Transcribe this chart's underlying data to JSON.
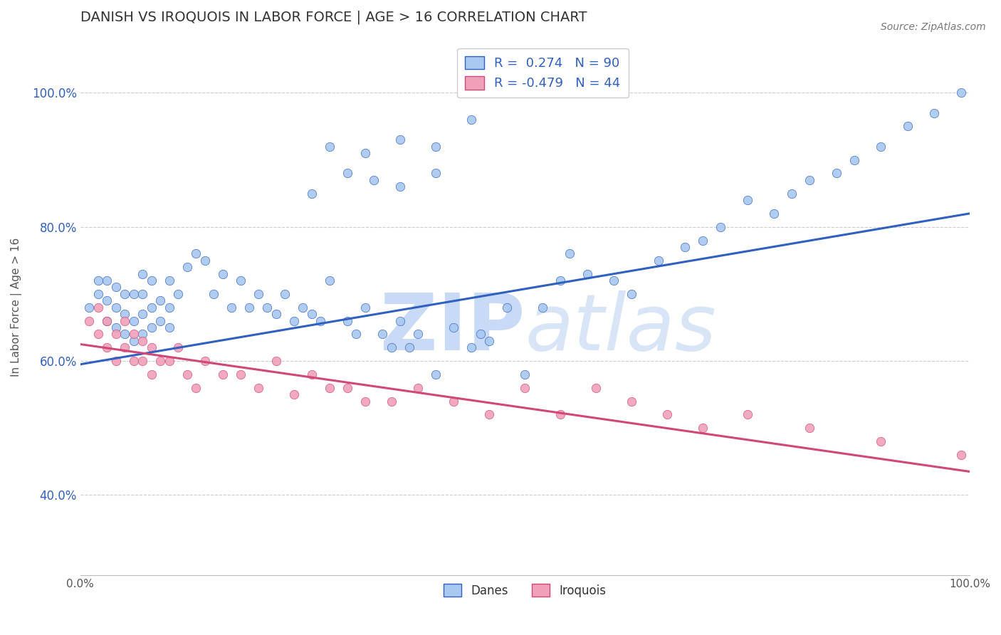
{
  "title": "DANISH VS IROQUOIS IN LABOR FORCE | AGE > 16 CORRELATION CHART",
  "source": "Source: ZipAtlas.com",
  "ylabel": "In Labor Force | Age > 16",
  "xlim": [
    0.0,
    1.0
  ],
  "ylim": [
    0.28,
    1.08
  ],
  "x_ticks": [
    0.0,
    0.2,
    0.4,
    0.6,
    0.8,
    1.0
  ],
  "x_tick_labels": [
    "0.0%",
    "",
    "",
    "",
    "",
    "100.0%"
  ],
  "y_ticks": [
    0.4,
    0.6,
    0.8,
    1.0
  ],
  "y_tick_labels": [
    "40.0%",
    "60.0%",
    "80.0%",
    "100.0%"
  ],
  "danes_color": "#a8c8f0",
  "iroquois_color": "#f0a0b8",
  "danes_line_color": "#3060c0",
  "iroquois_line_color": "#d04878",
  "legend_dane_label": "R =  0.274   N = 90",
  "legend_iroquois_label": "R = -0.479   N = 44",
  "dane_line_x0": 0.0,
  "dane_line_y0": 0.595,
  "dane_line_x1": 1.0,
  "dane_line_y1": 0.82,
  "iroquois_line_x0": 0.0,
  "iroquois_line_y0": 0.625,
  "iroquois_line_x1": 1.0,
  "iroquois_line_y1": 0.435,
  "danes_x": [
    0.01,
    0.02,
    0.02,
    0.03,
    0.03,
    0.03,
    0.04,
    0.04,
    0.04,
    0.05,
    0.05,
    0.05,
    0.06,
    0.06,
    0.06,
    0.07,
    0.07,
    0.07,
    0.07,
    0.08,
    0.08,
    0.08,
    0.09,
    0.09,
    0.1,
    0.1,
    0.1,
    0.11,
    0.12,
    0.13,
    0.14,
    0.15,
    0.16,
    0.17,
    0.18,
    0.19,
    0.2,
    0.21,
    0.22,
    0.23,
    0.24,
    0.25,
    0.26,
    0.27,
    0.28,
    0.3,
    0.31,
    0.32,
    0.34,
    0.35,
    0.36,
    0.37,
    0.38,
    0.4,
    0.42,
    0.44,
    0.45,
    0.46,
    0.48,
    0.5,
    0.52,
    0.54,
    0.55,
    0.57,
    0.6,
    0.62,
    0.65,
    0.68,
    0.7,
    0.72,
    0.75,
    0.78,
    0.8,
    0.82,
    0.85,
    0.87,
    0.9,
    0.93,
    0.96,
    0.99,
    0.26,
    0.3,
    0.33,
    0.36,
    0.4,
    0.28,
    0.32,
    0.36,
    0.4,
    0.44
  ],
  "danes_y": [
    0.68,
    0.7,
    0.72,
    0.66,
    0.69,
    0.72,
    0.65,
    0.68,
    0.71,
    0.64,
    0.67,
    0.7,
    0.63,
    0.66,
    0.7,
    0.64,
    0.67,
    0.7,
    0.73,
    0.65,
    0.68,
    0.72,
    0.66,
    0.69,
    0.65,
    0.68,
    0.72,
    0.7,
    0.74,
    0.76,
    0.75,
    0.7,
    0.73,
    0.68,
    0.72,
    0.68,
    0.7,
    0.68,
    0.67,
    0.7,
    0.66,
    0.68,
    0.67,
    0.66,
    0.72,
    0.66,
    0.64,
    0.68,
    0.64,
    0.62,
    0.66,
    0.62,
    0.64,
    0.58,
    0.65,
    0.62,
    0.64,
    0.63,
    0.68,
    0.58,
    0.68,
    0.72,
    0.76,
    0.73,
    0.72,
    0.7,
    0.75,
    0.77,
    0.78,
    0.8,
    0.84,
    0.82,
    0.85,
    0.87,
    0.88,
    0.9,
    0.92,
    0.95,
    0.97,
    1.0,
    0.85,
    0.88,
    0.87,
    0.86,
    0.88,
    0.92,
    0.91,
    0.93,
    0.92,
    0.96
  ],
  "iroquois_x": [
    0.01,
    0.02,
    0.02,
    0.03,
    0.03,
    0.04,
    0.04,
    0.05,
    0.05,
    0.06,
    0.06,
    0.07,
    0.07,
    0.08,
    0.08,
    0.09,
    0.1,
    0.11,
    0.12,
    0.13,
    0.14,
    0.16,
    0.18,
    0.2,
    0.22,
    0.24,
    0.26,
    0.28,
    0.3,
    0.32,
    0.35,
    0.38,
    0.42,
    0.46,
    0.5,
    0.54,
    0.58,
    0.62,
    0.66,
    0.7,
    0.75,
    0.82,
    0.9,
    0.99
  ],
  "iroquois_y": [
    0.66,
    0.64,
    0.68,
    0.62,
    0.66,
    0.6,
    0.64,
    0.62,
    0.66,
    0.6,
    0.64,
    0.6,
    0.63,
    0.58,
    0.62,
    0.6,
    0.6,
    0.62,
    0.58,
    0.56,
    0.6,
    0.58,
    0.58,
    0.56,
    0.6,
    0.55,
    0.58,
    0.56,
    0.56,
    0.54,
    0.54,
    0.56,
    0.54,
    0.52,
    0.56,
    0.52,
    0.56,
    0.54,
    0.52,
    0.5,
    0.52,
    0.5,
    0.48,
    0.46
  ],
  "background_color": "#ffffff",
  "grid_color": "#cccccc"
}
